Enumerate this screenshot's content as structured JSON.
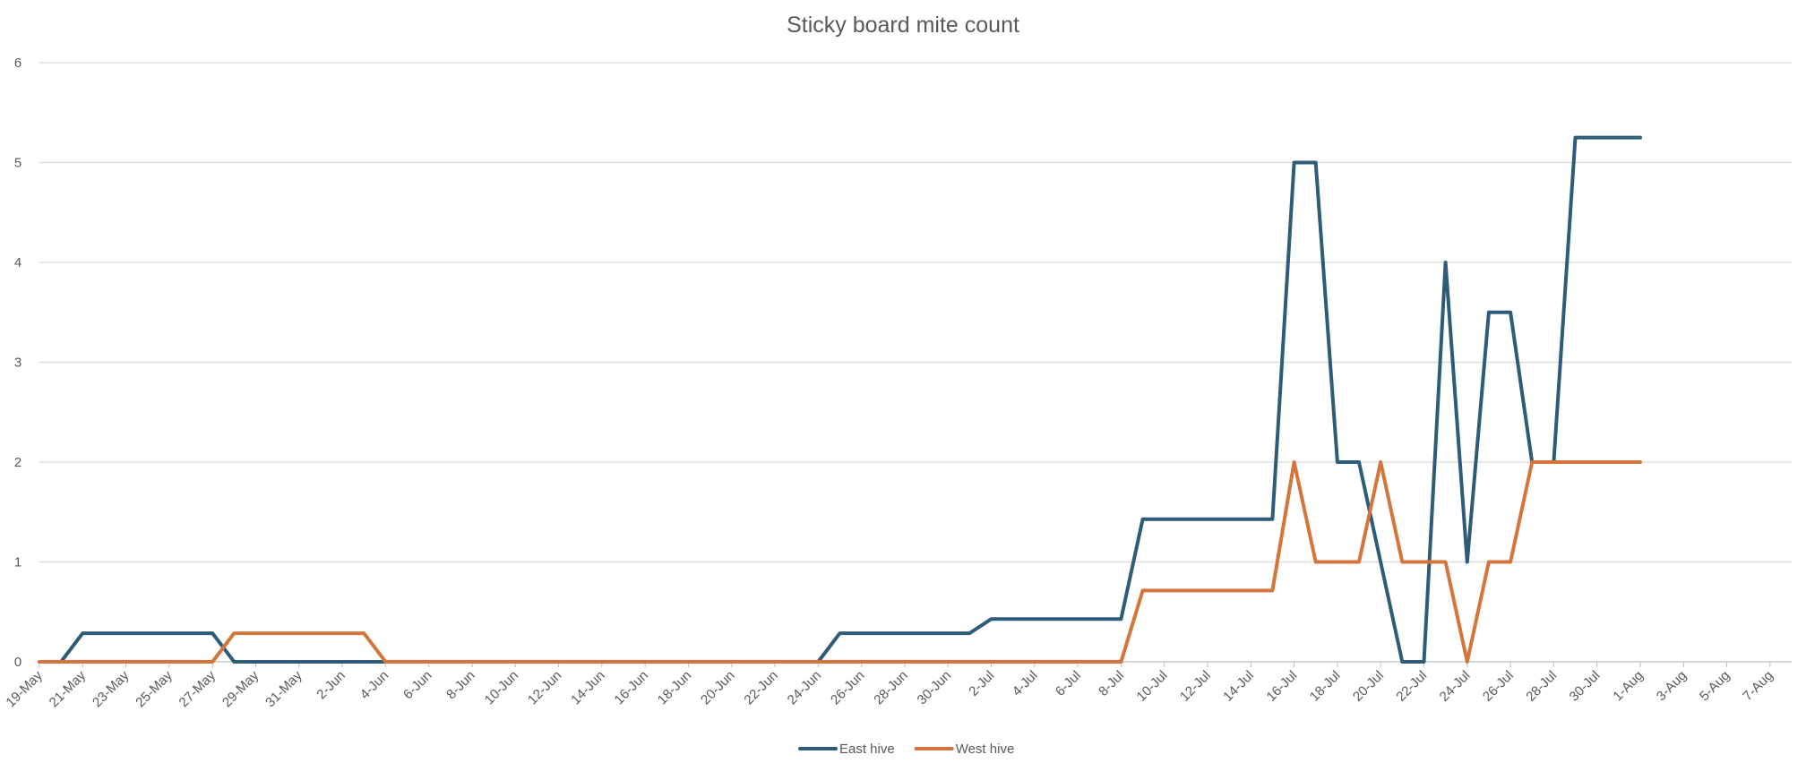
{
  "chart_data": {
    "type": "line",
    "title": "Sticky board mite count",
    "xlabel": "",
    "ylabel": "",
    "ylim": [
      0,
      6
    ],
    "yticks": [
      "0",
      "1",
      "2",
      "3",
      "4",
      "5",
      "6"
    ],
    "xlim": [
      "2024-05-19",
      "2024-08-08"
    ],
    "xticks": [
      "19-May",
      "21-May",
      "23-May",
      "25-May",
      "27-May",
      "29-May",
      "31-May",
      "2-Jun",
      "4-Jun",
      "6-Jun",
      "8-Jun",
      "10-Jun",
      "12-Jun",
      "14-Jun",
      "16-Jun",
      "18-Jun",
      "20-Jun",
      "22-Jun",
      "24-Jun",
      "26-Jun",
      "28-Jun",
      "30-Jun",
      "2-Jul",
      "4-Jul",
      "6-Jul",
      "8-Jul",
      "10-Jul",
      "12-Jul",
      "14-Jul",
      "16-Jul",
      "18-Jul",
      "20-Jul",
      "22-Jul",
      "24-Jul",
      "26-Jul",
      "28-Jul",
      "30-Jul",
      "1-Aug",
      "3-Aug",
      "5-Aug",
      "7-Aug"
    ],
    "grid": true,
    "legend_position": "bottom",
    "series": [
      {
        "name": "East hive",
        "color": "#2e5c78",
        "points": [
          [
            "2024-05-19",
            0
          ],
          [
            "2024-05-20",
            0
          ],
          [
            "2024-05-21",
            0.286
          ],
          [
            "2024-05-27",
            0.286
          ],
          [
            "2024-05-28",
            0
          ],
          [
            "2024-06-04",
            0
          ],
          [
            "2024-06-24",
            0
          ],
          [
            "2024-06-25",
            0.286
          ],
          [
            "2024-07-01",
            0.286
          ],
          [
            "2024-07-02",
            0.429
          ],
          [
            "2024-07-08",
            0.429
          ],
          [
            "2024-07-09",
            1.429
          ],
          [
            "2024-07-15",
            1.429
          ],
          [
            "2024-07-16",
            5
          ],
          [
            "2024-07-17",
            5
          ],
          [
            "2024-07-18",
            2
          ],
          [
            "2024-07-19",
            2
          ],
          [
            "2024-07-21",
            0
          ],
          [
            "2024-07-22",
            0
          ],
          [
            "2024-07-23",
            4
          ],
          [
            "2024-07-24",
            1
          ],
          [
            "2024-07-25",
            3.5
          ],
          [
            "2024-07-26",
            3.5
          ],
          [
            "2024-07-27",
            2
          ],
          [
            "2024-07-28",
            2
          ],
          [
            "2024-07-29",
            5.25
          ],
          [
            "2024-08-01",
            5.25
          ]
        ]
      },
      {
        "name": "West hive",
        "color": "#d4763c",
        "points": [
          [
            "2024-05-19",
            0
          ],
          [
            "2024-05-27",
            0
          ],
          [
            "2024-05-28",
            0.286
          ],
          [
            "2024-06-03",
            0.286
          ],
          [
            "2024-06-04",
            0
          ],
          [
            "2024-07-08",
            0
          ],
          [
            "2024-07-09",
            0.714
          ],
          [
            "2024-07-15",
            0.714
          ],
          [
            "2024-07-16",
            2
          ],
          [
            "2024-07-17",
            1
          ],
          [
            "2024-07-19",
            1
          ],
          [
            "2024-07-20",
            2
          ],
          [
            "2024-07-21",
            1
          ],
          [
            "2024-07-23",
            1
          ],
          [
            "2024-07-24",
            0
          ],
          [
            "2024-07-25",
            1
          ],
          [
            "2024-07-26",
            1
          ],
          [
            "2024-07-27",
            2
          ],
          [
            "2024-08-01",
            2
          ]
        ]
      }
    ]
  }
}
